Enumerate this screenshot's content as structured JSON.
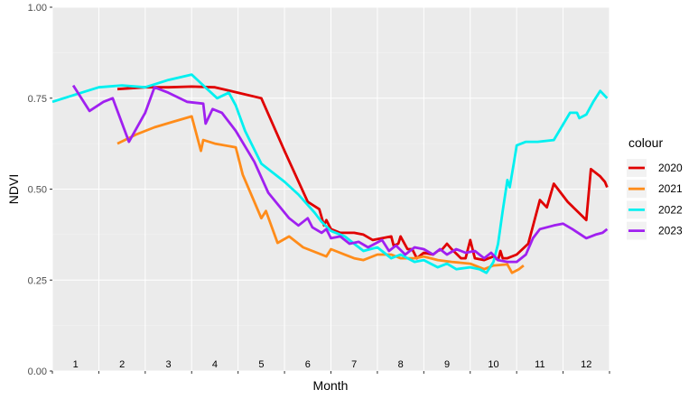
{
  "chart_data": {
    "type": "line",
    "title": "",
    "xlabel": "Month",
    "ylabel": "NDVI",
    "ylim": [
      0,
      1
    ],
    "xlim": [
      0.5,
      12.5
    ],
    "y_ticks": [
      0,
      0.25,
      0.5,
      0.75,
      1
    ],
    "y_tick_labels": [
      "0.00",
      "0.25",
      "0.50",
      "0.75",
      "1.00"
    ],
    "month_labels": [
      "1",
      "2",
      "3",
      "4",
      "5",
      "6",
      "7",
      "8",
      "9",
      "10",
      "11",
      "12"
    ],
    "grid": true,
    "legend": {
      "title": "colour",
      "position": "right"
    },
    "series": [
      {
        "name": "2020",
        "color": "#e00000",
        "points": [
          [
            1.9,
            0.775
          ],
          [
            2.5,
            0.78
          ],
          [
            3.0,
            0.78
          ],
          [
            3.5,
            0.782
          ],
          [
            4.0,
            0.78
          ],
          [
            4.5,
            0.765
          ],
          [
            5.0,
            0.75
          ],
          [
            5.5,
            0.605
          ],
          [
            6.0,
            0.465
          ],
          [
            6.25,
            0.445
          ],
          [
            6.35,
            0.4
          ],
          [
            6.4,
            0.415
          ],
          [
            6.5,
            0.39
          ],
          [
            6.7,
            0.38
          ],
          [
            7.0,
            0.38
          ],
          [
            7.2,
            0.375
          ],
          [
            7.4,
            0.36
          ],
          [
            7.6,
            0.365
          ],
          [
            7.8,
            0.37
          ],
          [
            7.85,
            0.345
          ],
          [
            7.95,
            0.35
          ],
          [
            8.0,
            0.37
          ],
          [
            8.15,
            0.335
          ],
          [
            8.25,
            0.335
          ],
          [
            8.35,
            0.31
          ],
          [
            8.5,
            0.325
          ],
          [
            8.7,
            0.32
          ],
          [
            8.8,
            0.33
          ],
          [
            8.9,
            0.335
          ],
          [
            9.0,
            0.35
          ],
          [
            9.1,
            0.335
          ],
          [
            9.3,
            0.31
          ],
          [
            9.4,
            0.31
          ],
          [
            9.5,
            0.36
          ],
          [
            9.6,
            0.31
          ],
          [
            9.8,
            0.305
          ],
          [
            10.0,
            0.315
          ],
          [
            10.1,
            0.305
          ],
          [
            10.15,
            0.33
          ],
          [
            10.2,
            0.31
          ],
          [
            10.3,
            0.31
          ],
          [
            10.5,
            0.32
          ],
          [
            10.75,
            0.35
          ],
          [
            11.0,
            0.47
          ],
          [
            11.15,
            0.45
          ],
          [
            11.3,
            0.515
          ],
          [
            11.6,
            0.465
          ],
          [
            12.0,
            0.415
          ],
          [
            12.1,
            0.555
          ],
          [
            12.3,
            0.535
          ],
          [
            12.4,
            0.52
          ],
          [
            12.45,
            0.505
          ]
        ]
      },
      {
        "name": "2021",
        "color": "#ff8c1a",
        "points": [
          [
            1.9,
            0.625
          ],
          [
            2.3,
            0.65
          ],
          [
            2.7,
            0.67
          ],
          [
            3.1,
            0.685
          ],
          [
            3.5,
            0.7
          ],
          [
            3.7,
            0.605
          ],
          [
            3.75,
            0.635
          ],
          [
            4.0,
            0.625
          ],
          [
            4.45,
            0.615
          ],
          [
            4.6,
            0.54
          ],
          [
            5.0,
            0.42
          ],
          [
            5.1,
            0.44
          ],
          [
            5.35,
            0.352
          ],
          [
            5.6,
            0.37
          ],
          [
            5.9,
            0.34
          ],
          [
            6.4,
            0.315
          ],
          [
            6.5,
            0.335
          ],
          [
            7.0,
            0.31
          ],
          [
            7.2,
            0.305
          ],
          [
            7.5,
            0.32
          ],
          [
            7.8,
            0.32
          ],
          [
            8.0,
            0.31
          ],
          [
            8.3,
            0.31
          ],
          [
            8.5,
            0.315
          ],
          [
            8.8,
            0.305
          ],
          [
            9.1,
            0.3
          ],
          [
            9.5,
            0.295
          ],
          [
            9.8,
            0.28
          ],
          [
            10.0,
            0.29
          ],
          [
            10.3,
            0.293
          ],
          [
            10.4,
            0.27
          ],
          [
            10.55,
            0.28
          ],
          [
            10.65,
            0.29
          ]
        ]
      },
      {
        "name": "2022",
        "color": "#00f0f0",
        "points": [
          [
            0.5,
            0.74
          ],
          [
            1.0,
            0.76
          ],
          [
            1.5,
            0.78
          ],
          [
            2.0,
            0.785
          ],
          [
            2.5,
            0.78
          ],
          [
            3.0,
            0.8
          ],
          [
            3.5,
            0.815
          ],
          [
            3.75,
            0.785
          ],
          [
            4.05,
            0.75
          ],
          [
            4.3,
            0.765
          ],
          [
            4.45,
            0.73
          ],
          [
            4.65,
            0.66
          ],
          [
            5.0,
            0.57
          ],
          [
            5.5,
            0.52
          ],
          [
            5.8,
            0.485
          ],
          [
            6.15,
            0.435
          ],
          [
            6.3,
            0.41
          ],
          [
            6.5,
            0.385
          ],
          [
            6.8,
            0.37
          ],
          [
            7.0,
            0.35
          ],
          [
            7.2,
            0.33
          ],
          [
            7.5,
            0.34
          ],
          [
            7.8,
            0.31
          ],
          [
            8.0,
            0.32
          ],
          [
            8.3,
            0.3
          ],
          [
            8.5,
            0.305
          ],
          [
            8.8,
            0.285
          ],
          [
            9.0,
            0.295
          ],
          [
            9.2,
            0.28
          ],
          [
            9.5,
            0.285
          ],
          [
            9.7,
            0.28
          ],
          [
            9.85,
            0.27
          ],
          [
            10.0,
            0.3
          ],
          [
            10.1,
            0.35
          ],
          [
            10.2,
            0.44
          ],
          [
            10.3,
            0.525
          ],
          [
            10.35,
            0.505
          ],
          [
            10.45,
            0.58
          ],
          [
            10.5,
            0.62
          ],
          [
            10.7,
            0.63
          ],
          [
            10.95,
            0.63
          ],
          [
            11.3,
            0.635
          ],
          [
            11.65,
            0.71
          ],
          [
            11.8,
            0.71
          ],
          [
            11.85,
            0.695
          ],
          [
            12.0,
            0.705
          ],
          [
            12.15,
            0.74
          ],
          [
            12.3,
            0.77
          ],
          [
            12.45,
            0.75
          ]
        ]
      },
      {
        "name": "2023",
        "color": "#a020f0",
        "points": [
          [
            0.95,
            0.785
          ],
          [
            1.3,
            0.715
          ],
          [
            1.6,
            0.74
          ],
          [
            1.8,
            0.75
          ],
          [
            2.15,
            0.63
          ],
          [
            2.5,
            0.71
          ],
          [
            2.7,
            0.78
          ],
          [
            3.0,
            0.765
          ],
          [
            3.4,
            0.74
          ],
          [
            3.75,
            0.735
          ],
          [
            3.8,
            0.68
          ],
          [
            3.95,
            0.72
          ],
          [
            4.15,
            0.71
          ],
          [
            4.45,
            0.66
          ],
          [
            4.85,
            0.575
          ],
          [
            5.15,
            0.49
          ],
          [
            5.6,
            0.42
          ],
          [
            5.8,
            0.4
          ],
          [
            6.0,
            0.42
          ],
          [
            6.1,
            0.395
          ],
          [
            6.3,
            0.38
          ],
          [
            6.4,
            0.39
          ],
          [
            6.5,
            0.365
          ],
          [
            6.7,
            0.37
          ],
          [
            6.9,
            0.35
          ],
          [
            7.1,
            0.355
          ],
          [
            7.3,
            0.34
          ],
          [
            7.6,
            0.36
          ],
          [
            7.75,
            0.33
          ],
          [
            7.9,
            0.345
          ],
          [
            8.1,
            0.32
          ],
          [
            8.3,
            0.34
          ],
          [
            8.5,
            0.335
          ],
          [
            8.7,
            0.32
          ],
          [
            8.85,
            0.335
          ],
          [
            9.0,
            0.32
          ],
          [
            9.2,
            0.335
          ],
          [
            9.4,
            0.325
          ],
          [
            9.6,
            0.33
          ],
          [
            9.8,
            0.31
          ],
          [
            9.95,
            0.325
          ],
          [
            10.1,
            0.305
          ],
          [
            10.3,
            0.3
          ],
          [
            10.5,
            0.3
          ],
          [
            10.7,
            0.32
          ],
          [
            10.85,
            0.365
          ],
          [
            11.0,
            0.39
          ],
          [
            11.3,
            0.4
          ],
          [
            11.5,
            0.405
          ],
          [
            11.7,
            0.39
          ],
          [
            12.0,
            0.365
          ],
          [
            12.2,
            0.375
          ],
          [
            12.35,
            0.38
          ],
          [
            12.45,
            0.39
          ]
        ]
      }
    ]
  }
}
